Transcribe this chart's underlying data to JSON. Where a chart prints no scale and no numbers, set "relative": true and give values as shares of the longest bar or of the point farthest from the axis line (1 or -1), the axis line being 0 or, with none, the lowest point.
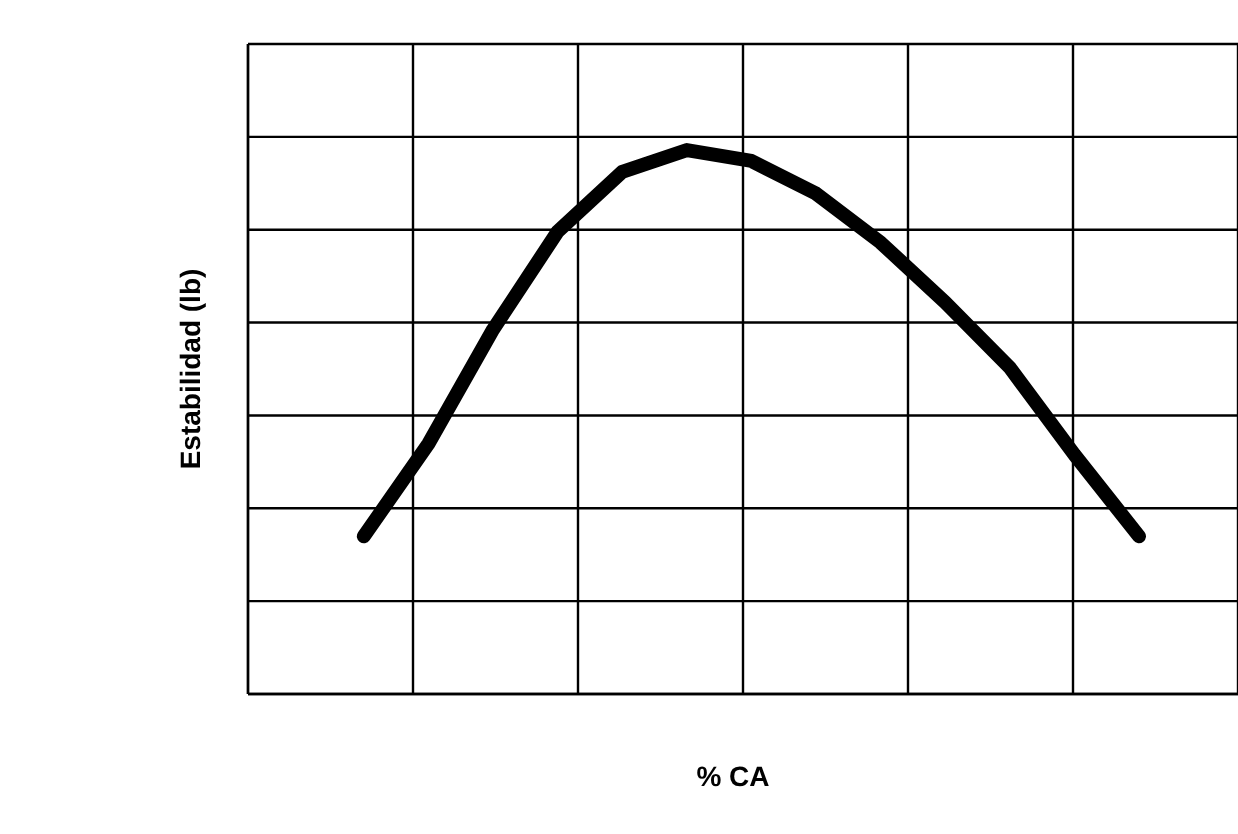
{
  "chart_data": {
    "type": "line",
    "relative": true,
    "xlabel": "% CA",
    "ylabel": "Estabilidad (lb)",
    "categories": [
      null,
      null,
      null,
      null,
      null,
      null,
      null,
      null,
      null,
      null,
      null,
      null,
      null
    ],
    "values": [
      0.29,
      0.46,
      0.67,
      0.85,
      0.96,
      1,
      0.98,
      0.92,
      0.83,
      0.72,
      0.6,
      0.44,
      0.29
    ],
    "color": "#000000",
    "grid": true,
    "marker": "none",
    "line_style": "solid"
  }
}
